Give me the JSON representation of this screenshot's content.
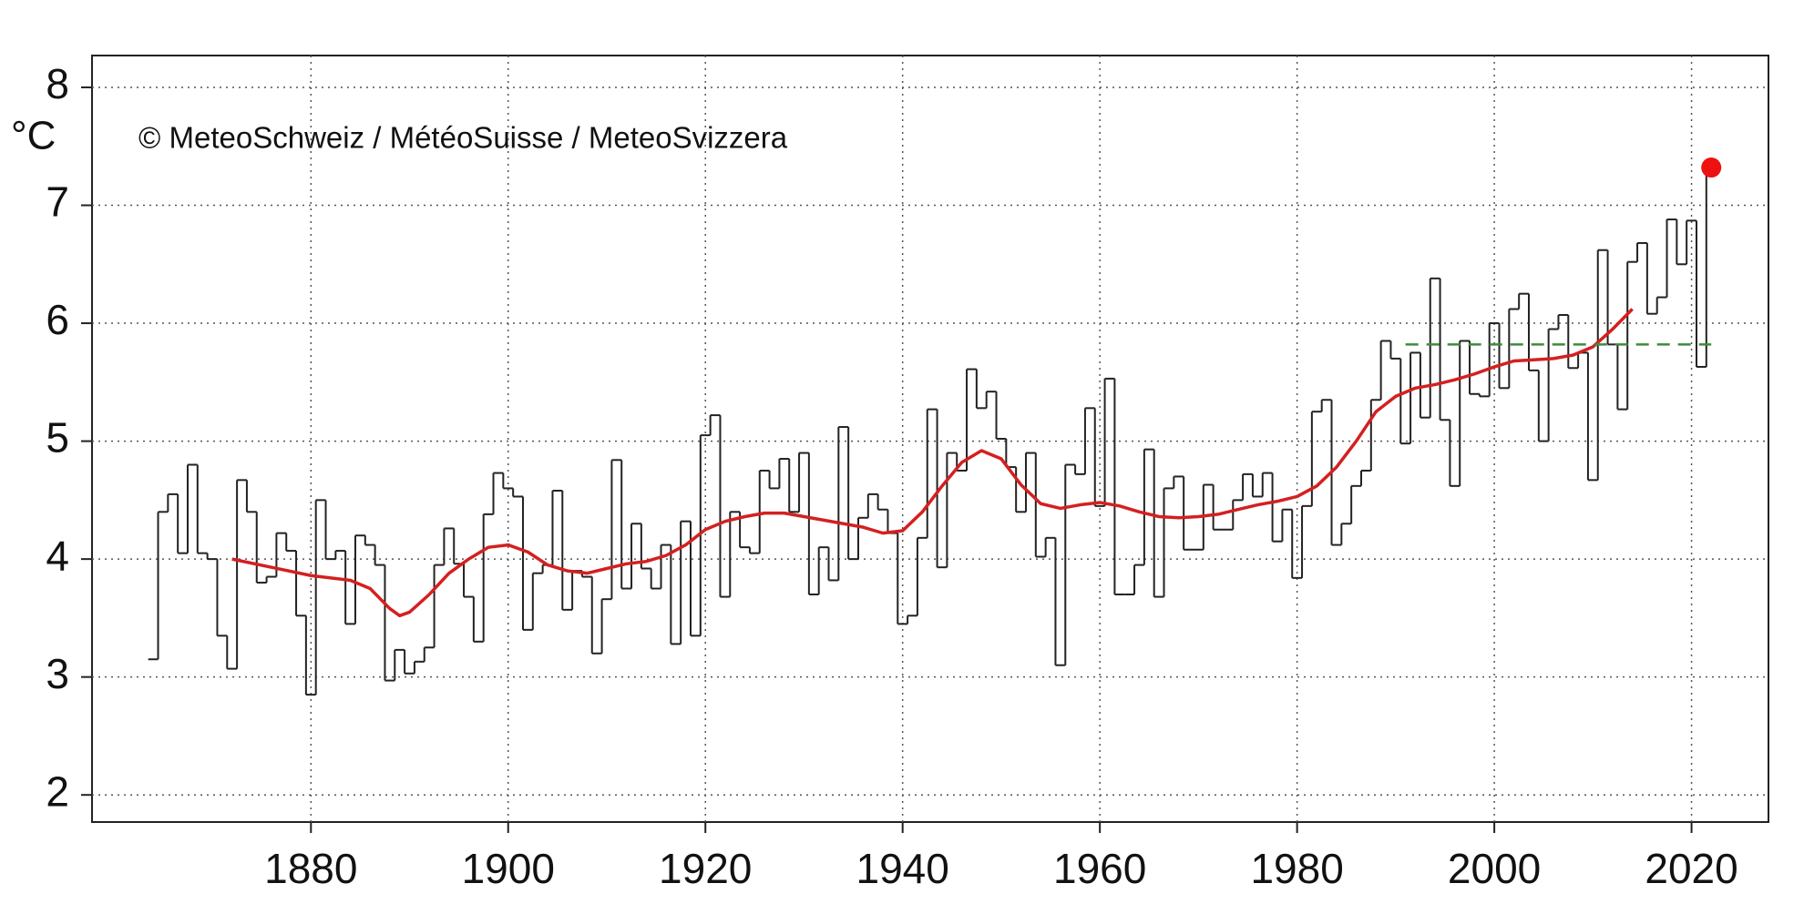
{
  "chart_data": {
    "type": "line",
    "y_label": "°C",
    "annotation": "© MeteoSchweiz / MétéoSuisse / MeteoSvizzera",
    "xlim": [
      1857.8,
      2027.8
    ],
    "ylim": [
      1.77,
      8.27
    ],
    "xticks": [
      1880,
      1900,
      1920,
      1940,
      1960,
      1980,
      2000,
      2020
    ],
    "yticks": [
      2,
      3,
      4,
      5,
      6,
      7,
      8
    ],
    "grid": true,
    "series": [
      {
        "style": "step",
        "color": "#222222",
        "x": [
          1864,
          1865,
          1866,
          1867,
          1868,
          1869,
          1870,
          1871,
          1872,
          1873,
          1874,
          1875,
          1876,
          1877,
          1878,
          1879,
          1880,
          1881,
          1882,
          1883,
          1884,
          1885,
          1886,
          1887,
          1888,
          1889,
          1890,
          1891,
          1892,
          1893,
          1894,
          1895,
          1896,
          1897,
          1898,
          1899,
          1900,
          1901,
          1902,
          1903,
          1904,
          1905,
          1906,
          1907,
          1908,
          1909,
          1910,
          1911,
          1912,
          1913,
          1914,
          1915,
          1916,
          1917,
          1918,
          1919,
          1920,
          1921,
          1922,
          1923,
          1924,
          1925,
          1926,
          1927,
          1928,
          1929,
          1930,
          1931,
          1932,
          1933,
          1934,
          1935,
          1936,
          1937,
          1938,
          1939,
          1940,
          1941,
          1942,
          1943,
          1944,
          1945,
          1946,
          1947,
          1948,
          1949,
          1950,
          1951,
          1952,
          1953,
          1954,
          1955,
          1956,
          1957,
          1958,
          1959,
          1960,
          1961,
          1962,
          1963,
          1964,
          1965,
          1966,
          1967,
          1968,
          1969,
          1970,
          1971,
          1972,
          1973,
          1974,
          1975,
          1976,
          1977,
          1978,
          1979,
          1980,
          1981,
          1982,
          1983,
          1984,
          1985,
          1986,
          1987,
          1988,
          1989,
          1990,
          1991,
          1992,
          1993,
          1994,
          1995,
          1996,
          1997,
          1998,
          1999,
          2000,
          2001,
          2002,
          2003,
          2004,
          2005,
          2006,
          2007,
          2008,
          2009,
          2010,
          2011,
          2012,
          2013,
          2014,
          2015,
          2016,
          2017,
          2018,
          2019,
          2020,
          2021,
          2022
        ],
        "values": [
          3.15,
          4.4,
          4.55,
          4.05,
          4.8,
          4.05,
          4.0,
          3.35,
          3.07,
          4.67,
          4.4,
          3.8,
          3.85,
          4.22,
          4.07,
          3.52,
          2.85,
          4.5,
          4.0,
          4.07,
          3.45,
          4.2,
          4.12,
          3.95,
          2.97,
          3.23,
          3.03,
          3.13,
          3.25,
          3.95,
          4.26,
          3.96,
          3.68,
          3.3,
          4.38,
          4.73,
          4.6,
          4.53,
          3.4,
          3.88,
          3.95,
          4.58,
          3.57,
          3.9,
          3.85,
          3.2,
          3.66,
          4.84,
          3.75,
          4.3,
          3.92,
          3.75,
          4.12,
          3.28,
          4.32,
          3.35,
          5.05,
          5.22,
          3.68,
          4.4,
          4.1,
          4.05,
          4.75,
          4.6,
          4.85,
          4.4,
          4.9,
          3.7,
          4.1,
          3.82,
          5.12,
          4.0,
          4.35,
          4.55,
          4.42,
          4.22,
          3.45,
          3.52,
          4.18,
          5.27,
          3.93,
          4.9,
          4.75,
          5.61,
          5.28,
          5.42,
          5.02,
          4.78,
          4.4,
          4.9,
          4.02,
          4.18,
          3.1,
          4.8,
          4.72,
          5.28,
          4.45,
          5.53,
          3.7,
          3.7,
          3.95,
          4.93,
          3.68,
          4.6,
          4.7,
          4.08,
          4.08,
          4.63,
          4.25,
          4.25,
          4.5,
          4.72,
          4.53,
          4.73,
          4.15,
          4.42,
          3.84,
          4.45,
          5.25,
          5.35,
          4.12,
          4.3,
          4.62,
          4.75,
          5.35,
          5.85,
          5.7,
          4.98,
          5.75,
          5.2,
          6.38,
          5.18,
          4.62,
          5.85,
          5.4,
          5.38,
          6.0,
          5.45,
          6.12,
          6.25,
          5.6,
          5.0,
          5.95,
          6.07,
          5.62,
          5.75,
          4.67,
          6.62,
          5.82,
          5.27,
          6.52,
          6.68,
          6.08,
          6.22,
          6.88,
          6.5,
          6.87,
          5.63,
          7.32
        ]
      },
      {
        "style": "smooth",
        "color": "#d42020",
        "x": [
          1872,
          1876,
          1880,
          1884,
          1886,
          1888,
          1889,
          1890,
          1892,
          1894,
          1896,
          1898,
          1900,
          1902,
          1904,
          1906,
          1908,
          1910,
          1912,
          1914,
          1916,
          1918,
          1920,
          1922,
          1924,
          1926,
          1928,
          1930,
          1932,
          1934,
          1936,
          1938,
          1940,
          1942,
          1944,
          1946,
          1948,
          1950,
          1952,
          1954,
          1956,
          1958,
          1960,
          1962,
          1964,
          1966,
          1968,
          1970,
          1972,
          1974,
          1976,
          1978,
          1980,
          1982,
          1984,
          1986,
          1988,
          1990,
          1992,
          1994,
          1996,
          1998,
          2000,
          2002,
          2004,
          2006,
          2008,
          2010,
          2012,
          2014
        ],
        "values": [
          4.0,
          3.93,
          3.86,
          3.82,
          3.75,
          3.58,
          3.52,
          3.55,
          3.7,
          3.88,
          4.0,
          4.1,
          4.12,
          4.06,
          3.95,
          3.9,
          3.88,
          3.92,
          3.96,
          3.98,
          4.03,
          4.12,
          4.25,
          4.32,
          4.36,
          4.39,
          4.39,
          4.36,
          4.33,
          4.3,
          4.27,
          4.22,
          4.24,
          4.4,
          4.62,
          4.82,
          4.92,
          4.85,
          4.63,
          4.47,
          4.43,
          4.46,
          4.48,
          4.45,
          4.4,
          4.36,
          4.35,
          4.36,
          4.38,
          4.42,
          4.46,
          4.49,
          4.53,
          4.62,
          4.78,
          5.0,
          5.25,
          5.38,
          5.45,
          5.48,
          5.52,
          5.57,
          5.63,
          5.68,
          5.69,
          5.7,
          5.73,
          5.8,
          5.95,
          6.12
        ]
      },
      {
        "style": "dashed",
        "color": "#3c8c3c",
        "x": [
          1991,
          2022
        ],
        "values": [
          5.82,
          5.82
        ]
      },
      {
        "style": "point",
        "color": "#ee1111",
        "x": [
          2022
        ],
        "values": [
          7.32
        ]
      }
    ]
  }
}
